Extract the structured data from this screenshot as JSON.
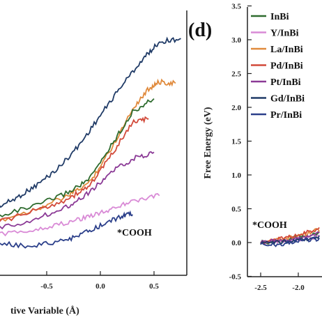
{
  "chart_data": [
    {
      "panel": "c",
      "type": "line",
      "xlabel": "tive Variable (Å)",
      "ylabel": "",
      "xlim": [
        -1.0,
        0.9
      ],
      "ylim": [
        -0.5,
        3.5
      ],
      "x_ticks": [
        "-0.5",
        "0.0",
        "0.5"
      ],
      "annotation": "*COOH",
      "series": [
        {
          "color": "#1f3a66",
          "x": [
            -1.0,
            -0.8,
            -0.6,
            -0.4,
            -0.2,
            0.0,
            0.2,
            0.4,
            0.55,
            0.75
          ],
          "values": [
            0.5,
            0.65,
            0.85,
            1.1,
            1.45,
            1.9,
            2.35,
            2.75,
            3.0,
            3.05
          ]
        },
        {
          "color": "#e08a3c",
          "x": [
            -1.0,
            -0.6,
            -0.3,
            -0.1,
            0.1,
            0.3,
            0.45,
            0.55,
            0.7
          ],
          "values": [
            0.3,
            0.5,
            0.7,
            0.9,
            1.4,
            2.0,
            2.3,
            2.4,
            2.38
          ]
        },
        {
          "color": "#2e6b2e",
          "x": [
            -1.0,
            -0.6,
            -0.3,
            -0.1,
            0.1,
            0.3,
            0.5
          ],
          "values": [
            0.38,
            0.55,
            0.75,
            0.95,
            1.45,
            1.95,
            2.15
          ]
        },
        {
          "color": "#d24a3a",
          "x": [
            -1.0,
            -0.6,
            -0.3,
            -0.1,
            0.1,
            0.3,
            0.45
          ],
          "values": [
            0.28,
            0.48,
            0.65,
            0.85,
            1.3,
            1.8,
            1.85
          ]
        },
        {
          "color": "#8b3a96",
          "x": [
            -1.0,
            -0.6,
            -0.3,
            -0.1,
            0.1,
            0.3,
            0.5
          ],
          "values": [
            0.2,
            0.35,
            0.55,
            0.75,
            1.05,
            1.25,
            1.35
          ]
        },
        {
          "color": "#d98ad6",
          "x": [
            -1.0,
            -0.6,
            -0.3,
            -0.1,
            0.1,
            0.3,
            0.55
          ],
          "values": [
            0.1,
            0.2,
            0.3,
            0.4,
            0.5,
            0.62,
            0.7
          ]
        },
        {
          "color": "#2b3f8a",
          "x": [
            -1.0,
            -0.7,
            -0.4,
            -0.2,
            0.0,
            0.2,
            0.3
          ],
          "values": [
            0.0,
            -0.05,
            0.0,
            0.1,
            0.25,
            0.4,
            0.42
          ]
        }
      ]
    },
    {
      "panel": "d",
      "type": "line",
      "title": "",
      "xlabel": "",
      "ylabel": "Free Energy (eV)",
      "xlim": [
        -2.6,
        -1.4
      ],
      "ylim": [
        -0.5,
        3.5
      ],
      "x_ticks": [
        "-2.5",
        "-2.0"
      ],
      "y_ticks": [
        "-0.5",
        "0.0",
        "0.5",
        "1.0",
        "1.5",
        "2.0",
        "2.5",
        "3.0",
        "3.5"
      ],
      "legend_position": "top-right",
      "annotation": "*COOH",
      "series": [
        {
          "name": "InBi",
          "color": "#2e6b2e",
          "x": [
            -2.5,
            -2.3,
            -2.1,
            -1.9,
            -1.7
          ],
          "values": [
            0.0,
            0.02,
            0.05,
            0.1,
            0.15
          ]
        },
        {
          "name": "Y/InBi",
          "color": "#d98ad6",
          "x": [
            -2.5,
            -2.3,
            -2.1,
            -1.9,
            -1.7
          ],
          "values": [
            0.0,
            0.01,
            0.03,
            0.06,
            0.1
          ]
        },
        {
          "name": "La/InBi",
          "color": "#e08a3c",
          "x": [
            -2.5,
            -2.3,
            -2.1,
            -1.9,
            -1.7
          ],
          "values": [
            0.0,
            0.03,
            0.07,
            0.12,
            0.2
          ]
        },
        {
          "name": "Pd/InBi",
          "color": "#d24a3a",
          "x": [
            -2.5,
            -2.3,
            -2.1,
            -1.9,
            -1.7
          ],
          "values": [
            0.0,
            0.04,
            0.08,
            0.14,
            0.22
          ]
        },
        {
          "name": "Pt/InBi",
          "color": "#8b3a96",
          "x": [
            -2.5,
            -2.3,
            -2.1,
            -1.9,
            -1.7
          ],
          "values": [
            0.0,
            0.02,
            0.05,
            0.09,
            0.14
          ]
        },
        {
          "name": "Gd/InBi",
          "color": "#1f3a66",
          "x": [
            -2.5,
            -2.3,
            -2.1,
            -1.9,
            -1.7
          ],
          "values": [
            0.0,
            0.01,
            0.02,
            0.05,
            0.08
          ]
        },
        {
          "name": "Pr/InBi",
          "color": "#2b3f8a",
          "x": [
            -2.5,
            -2.3,
            -2.1,
            -1.9,
            -1.7
          ],
          "values": [
            0.0,
            -0.03,
            0.0,
            0.04,
            0.06
          ]
        }
      ]
    }
  ],
  "panel_d_label": "(d)"
}
